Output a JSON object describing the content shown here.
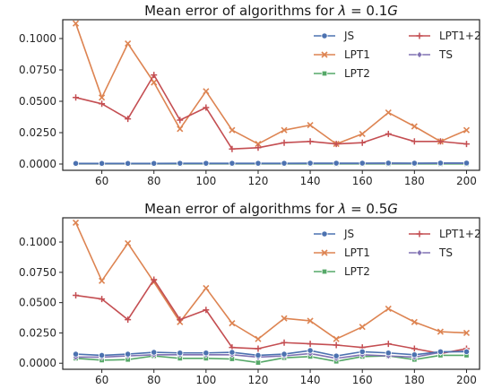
{
  "chart_data": [
    {
      "type": "line",
      "title_prefix": "Mean error of algorithms for ",
      "title_math": "λ = 0.1G",
      "x": [
        50,
        60,
        70,
        80,
        90,
        100,
        110,
        120,
        130,
        140,
        150,
        160,
        170,
        180,
        190,
        200
      ],
      "xticks": [
        60,
        80,
        100,
        120,
        140,
        160,
        180,
        200
      ],
      "yticks": [
        "0.0000",
        "0.0250",
        "0.0500",
        "0.0750",
        "0.1000"
      ],
      "xlim": [
        45,
        205
      ],
      "ylim": [
        -0.005,
        0.115
      ],
      "grid": false,
      "legend_placement": "top-right",
      "series": [
        {
          "name": "JS",
          "color": "#4c72b0",
          "marker": "circle",
          "values": [
            0.0005,
            0.0005,
            0.0005,
            0.0005,
            0.0006,
            0.0006,
            0.0006,
            0.0006,
            0.0006,
            0.0007,
            0.0007,
            0.0007,
            0.0008,
            0.0007,
            0.0008,
            0.0008
          ]
        },
        {
          "name": "LPT1",
          "color": "#dd8452",
          "marker": "x",
          "values": [
            0.112,
            0.053,
            0.096,
            0.065,
            0.028,
            0.058,
            0.027,
            0.016,
            0.027,
            0.031,
            0.016,
            0.024,
            0.041,
            0.03,
            0.018,
            0.027
          ]
        },
        {
          "name": "LPT2",
          "color": "#55a868",
          "marker": "square",
          "values": [
            0.0001,
            0.0001,
            0.0001,
            0.0001,
            0.0001,
            0.0001,
            0.0001,
            0.0001,
            0.0001,
            0.0001,
            0.0001,
            0.0001,
            0.0001,
            0.0001,
            0.0001,
            0.0001
          ]
        },
        {
          "name": "LPT1+2",
          "color": "#c44e52",
          "marker": "plus",
          "values": [
            0.053,
            0.048,
            0.036,
            0.071,
            0.035,
            0.045,
            0.012,
            0.013,
            0.017,
            0.018,
            0.016,
            0.017,
            0.024,
            0.018,
            0.018,
            0.016
          ]
        },
        {
          "name": "TS",
          "color": "#8172b3",
          "marker": "diamond",
          "values": [
            0.0003,
            0.0003,
            0.0003,
            0.0003,
            0.0004,
            0.0004,
            0.0004,
            0.0004,
            0.0004,
            0.0005,
            0.0005,
            0.0005,
            0.0005,
            0.0005,
            0.0006,
            0.0006
          ]
        }
      ]
    },
    {
      "type": "line",
      "title_prefix": "Mean error of algorithms for ",
      "title_math": "λ = 0.5G",
      "x": [
        50,
        60,
        70,
        80,
        90,
        100,
        110,
        120,
        130,
        140,
        150,
        160,
        170,
        180,
        190,
        200
      ],
      "xticks": [
        60,
        80,
        100,
        120,
        140,
        160,
        180,
        200
      ],
      "yticks": [
        "0.0000",
        "0.0250",
        "0.0500",
        "0.0750",
        "0.1000"
      ],
      "xlim": [
        45,
        205
      ],
      "ylim": [
        -0.005,
        0.12
      ],
      "grid": false,
      "legend_placement": "top-right",
      "series": [
        {
          "name": "JS",
          "color": "#4c72b0",
          "marker": "circle",
          "values": [
            0.0075,
            0.0065,
            0.0075,
            0.009,
            0.0085,
            0.0085,
            0.009,
            0.0065,
            0.0075,
            0.0105,
            0.006,
            0.0095,
            0.0085,
            0.007,
            0.0095,
            0.0095
          ]
        },
        {
          "name": "LPT1",
          "color": "#dd8452",
          "marker": "x",
          "values": [
            0.116,
            0.068,
            0.099,
            0.067,
            0.034,
            0.062,
            0.033,
            0.02,
            0.037,
            0.035,
            0.02,
            0.03,
            0.045,
            0.034,
            0.026,
            0.025
          ]
        },
        {
          "name": "LPT2",
          "color": "#55a868",
          "marker": "square",
          "values": [
            0.004,
            0.0025,
            0.003,
            0.006,
            0.004,
            0.004,
            0.0035,
            0.0005,
            0.0045,
            0.0055,
            0.0015,
            0.0055,
            0.006,
            0.003,
            0.0065,
            0.0065
          ]
        },
        {
          "name": "LPT1+2",
          "color": "#c44e52",
          "marker": "plus",
          "values": [
            0.056,
            0.053,
            0.036,
            0.069,
            0.036,
            0.044,
            0.013,
            0.012,
            0.017,
            0.016,
            0.015,
            0.013,
            0.016,
            0.012,
            0.008,
            0.012
          ]
        },
        {
          "name": "TS",
          "color": "#8172b3",
          "marker": "diamond",
          "values": [
            0.005,
            0.005,
            0.006,
            0.007,
            0.007,
            0.007,
            0.007,
            0.005,
            0.006,
            0.008,
            0.004,
            0.007,
            0.006,
            0.005,
            0.009,
            0.01
          ]
        }
      ]
    }
  ]
}
